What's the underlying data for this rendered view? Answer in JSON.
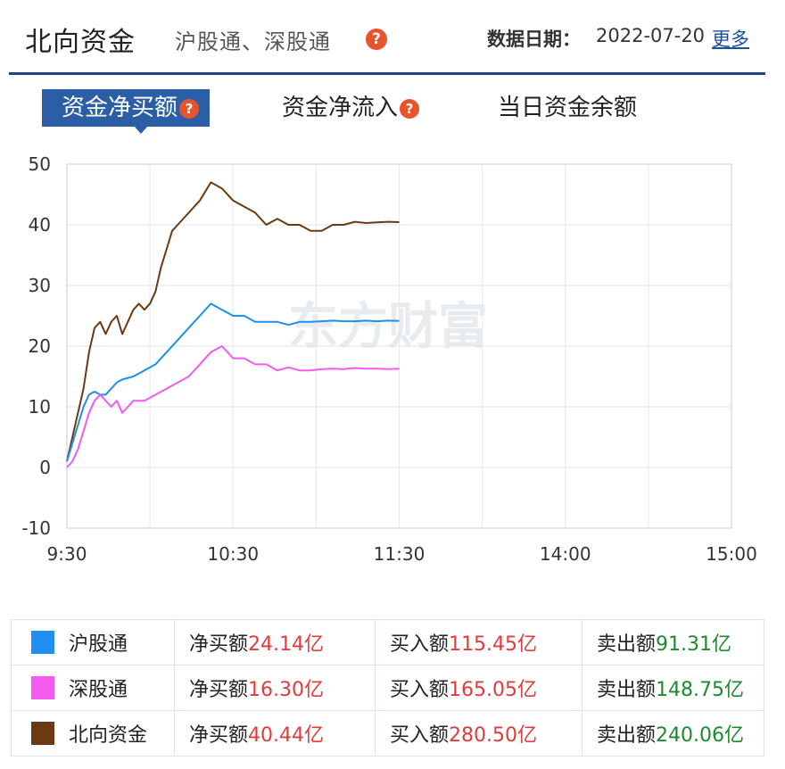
{
  "header": {
    "title": "北向资金",
    "subtitle": "沪股通、深股通",
    "date_label": "数据日期：",
    "date_value": "2022-07-20",
    "more_link": "更多",
    "help_glyph": "?"
  },
  "tabs": [
    {
      "label": "资金净买额",
      "active": true
    },
    {
      "label": "资金净流入",
      "active": false
    },
    {
      "label": "当日资金余额",
      "active": false
    }
  ],
  "watermark": "东方财富",
  "chart_data": {
    "type": "line",
    "y_ticks": [
      50,
      40,
      30,
      20,
      10,
      0,
      -10
    ],
    "ylim": [
      -10,
      50
    ],
    "x_ticks": [
      "9:30",
      "10:30",
      "11:30",
      "14:00",
      "15:00"
    ],
    "grid": true,
    "series": [
      {
        "name": "北向资金",
        "color": "#6b3a12",
        "x": [
          0,
          2,
          4,
          6,
          8,
          10,
          12,
          14,
          16,
          18,
          20,
          22,
          24,
          26,
          28,
          30,
          32,
          34,
          36,
          38,
          40,
          44,
          48,
          52,
          56,
          60,
          64,
          68,
          72,
          76,
          80,
          84,
          88,
          92,
          96,
          100,
          104,
          108,
          112,
          116,
          120
        ],
        "y": [
          1,
          5,
          9,
          13,
          19,
          23,
          24,
          22,
          24,
          25,
          22,
          24,
          26,
          27,
          26,
          27,
          29,
          33,
          36,
          39,
          40,
          42,
          44,
          47,
          46,
          44,
          43,
          42,
          40,
          41,
          40,
          40,
          39,
          39,
          40,
          40,
          40.5,
          40.3,
          40.4,
          40.5,
          40.44
        ]
      },
      {
        "name": "沪股通",
        "color": "#1e8ff0",
        "x": [
          0,
          2,
          4,
          6,
          8,
          10,
          12,
          14,
          16,
          18,
          20,
          24,
          28,
          32,
          36,
          40,
          44,
          48,
          52,
          56,
          60,
          64,
          68,
          72,
          76,
          80,
          84,
          88,
          92,
          96,
          100,
          104,
          108,
          112,
          116,
          120
        ],
        "y": [
          1,
          4,
          7,
          10,
          12,
          12.5,
          12,
          12,
          13,
          14,
          14.5,
          15,
          16,
          17,
          19,
          21,
          23,
          25,
          27,
          26,
          25,
          25,
          24,
          24,
          24,
          23.5,
          24,
          24,
          24.1,
          24.2,
          24.1,
          24.1,
          24.2,
          24.1,
          24.2,
          24.14
        ]
      },
      {
        "name": "深股通",
        "color": "#f25af0",
        "x": [
          0,
          2,
          4,
          6,
          8,
          10,
          12,
          14,
          16,
          18,
          20,
          24,
          28,
          32,
          36,
          40,
          44,
          48,
          52,
          56,
          60,
          64,
          68,
          72,
          76,
          80,
          84,
          88,
          92,
          96,
          100,
          104,
          108,
          112,
          116,
          120
        ],
        "y": [
          0,
          1,
          3,
          6,
          9,
          11,
          12,
          11,
          10,
          11,
          9,
          11,
          11,
          12,
          13,
          14,
          15,
          17,
          19,
          20,
          18,
          18,
          17,
          17,
          16,
          16.5,
          16,
          16,
          16.2,
          16.3,
          16.2,
          16.4,
          16.3,
          16.3,
          16.2,
          16.3
        ]
      }
    ]
  },
  "legend": [
    {
      "name": "沪股通",
      "color": "#1e8ff0",
      "net_label": "净买额",
      "net_value": "24.14亿",
      "buy_label": "买入额",
      "buy_value": "115.45亿",
      "sell_label": "卖出额",
      "sell_value": "91.31亿"
    },
    {
      "name": "深股通",
      "color": "#f25af0",
      "net_label": "净买额",
      "net_value": "16.30亿",
      "buy_label": "买入额",
      "buy_value": "165.05亿",
      "sell_label": "卖出额",
      "sell_value": "148.75亿"
    },
    {
      "name": "北向资金",
      "color": "#6b3a12",
      "net_label": "净买额",
      "net_value": "40.44亿",
      "buy_label": "买入额",
      "buy_value": "280.50亿",
      "sell_label": "卖出额",
      "sell_value": "240.06亿"
    }
  ]
}
